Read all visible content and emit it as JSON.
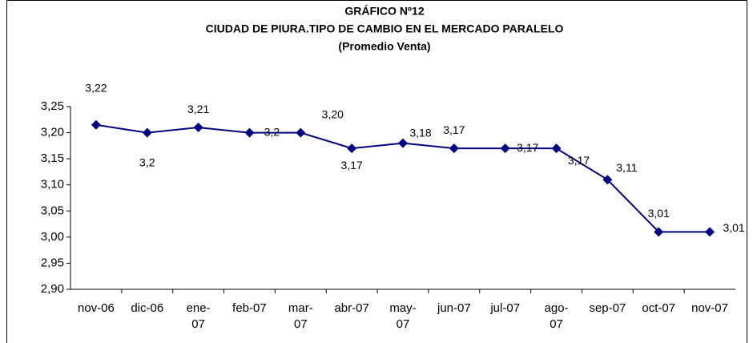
{
  "chart_data": {
    "type": "line",
    "title": [
      "GRÁFICO Nº12",
      "CIUDAD DE PIURA.TIPO DE CAMBIO EN EL MERCADO PARALELO",
      "(Promedio Venta)"
    ],
    "categories": [
      "nov-06",
      "dic-06",
      "ene-07",
      "feb-07",
      "mar-07",
      "abr-07",
      "may-07",
      "jun-07",
      "jul-07",
      "ago-07",
      "sep-07",
      "oct-07",
      "nov-07"
    ],
    "series": [
      {
        "color": "#000080",
        "values": [
          3.215,
          3.2,
          3.21,
          3.2,
          3.2,
          3.17,
          3.18,
          3.17,
          3.17,
          3.17,
          3.11,
          3.01,
          3.01
        ],
        "value_labels": [
          "3,22",
          "3,2",
          "3,21",
          "3,2",
          "3,20",
          "3,17",
          "3,18",
          "3,17",
          "3,17",
          "3,17",
          "3,11",
          "3,01",
          "3,01"
        ]
      }
    ],
    "ylim": [
      2.9,
      3.25
    ],
    "yticks": [
      {
        "value": 2.9,
        "label": "2,90"
      },
      {
        "value": 2.95,
        "label": "2,95"
      },
      {
        "value": 3.0,
        "label": "3,00"
      },
      {
        "value": 3.05,
        "label": "3,05"
      },
      {
        "value": 3.1,
        "label": "3,10"
      },
      {
        "value": 3.15,
        "label": "3,15"
      },
      {
        "value": 3.2,
        "label": "3,20"
      },
      {
        "value": 3.25,
        "label": "3,25"
      }
    ],
    "grid": false
  }
}
